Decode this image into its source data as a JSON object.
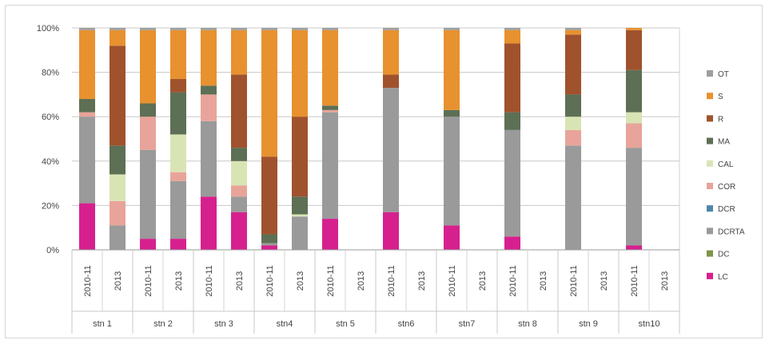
{
  "chart_data": {
    "type": "bar",
    "stacked": true,
    "percent": true,
    "groups": [
      "stn 1",
      "stn 2",
      "stn 3",
      "stn4",
      "stn 5",
      "stn6",
      "stn7",
      "stn 8",
      "stn 9",
      "stn10"
    ],
    "periods": [
      "2010-11",
      "2013"
    ],
    "y_ticks": [
      "0%",
      "20%",
      "40%",
      "60%",
      "80%",
      "100%"
    ],
    "ylim": [
      0,
      100
    ],
    "grid": true,
    "legend_position": "right",
    "series": [
      {
        "name": "LC",
        "color": "#d6208e"
      },
      {
        "name": "DC",
        "color": "#7f9447"
      },
      {
        "name": "DCRTA",
        "color": "#9a9a9a"
      },
      {
        "name": "DCR",
        "color": "#4f86a8"
      },
      {
        "name": "COR",
        "color": "#e8a49a"
      },
      {
        "name": "CAL",
        "color": "#d9e4b4"
      },
      {
        "name": "MA",
        "color": "#5d6f54"
      },
      {
        "name": "R",
        "color": "#a0522d"
      },
      {
        "name": "S",
        "color": "#e8912f"
      },
      {
        "name": "OT",
        "color": "#9e9e9e"
      }
    ],
    "bars": [
      {
        "station": "stn 1",
        "period": "2010-11",
        "values": [
          21,
          0,
          39,
          0,
          2,
          0,
          6,
          0,
          31,
          1
        ]
      },
      {
        "station": "stn 1",
        "period": "2013",
        "values": [
          0,
          0,
          11,
          0,
          11,
          12,
          13,
          45,
          7,
          1
        ]
      },
      {
        "station": "stn 2",
        "period": "2010-11",
        "values": [
          5,
          0,
          40,
          0,
          15,
          0,
          6,
          0,
          33,
          1
        ]
      },
      {
        "station": "stn 2",
        "period": "2013",
        "values": [
          5,
          0,
          26,
          0,
          4,
          17,
          19,
          6,
          22,
          1
        ]
      },
      {
        "station": "stn 3",
        "period": "2010-11",
        "values": [
          24,
          0,
          34,
          0,
          12,
          0,
          4,
          0,
          25,
          1
        ]
      },
      {
        "station": "stn 3",
        "period": "2013",
        "values": [
          17,
          0,
          7,
          0,
          5,
          11,
          6,
          33,
          20,
          1
        ]
      },
      {
        "station": "stn4",
        "period": "2010-11",
        "values": [
          2,
          0,
          1,
          0,
          0,
          0,
          4,
          35,
          57,
          1
        ]
      },
      {
        "station": "stn4",
        "period": "2013",
        "values": [
          0,
          0,
          15,
          0,
          0,
          1,
          8,
          36,
          39,
          1
        ]
      },
      {
        "station": "stn 5",
        "period": "2010-11",
        "values": [
          14,
          0,
          48,
          0,
          1,
          0,
          2,
          0,
          34,
          1
        ]
      },
      {
        "station": "stn6",
        "period": "2010-11",
        "values": [
          17,
          0,
          56,
          0,
          0,
          0,
          0,
          6,
          20,
          1
        ]
      },
      {
        "station": "stn7",
        "period": "2010-11",
        "values": [
          11,
          0,
          49,
          0,
          0,
          0,
          3,
          0,
          36,
          1
        ]
      },
      {
        "station": "stn 8",
        "period": "2010-11",
        "values": [
          6,
          0,
          48,
          0,
          0,
          0,
          8,
          31,
          6,
          1
        ]
      },
      {
        "station": "stn 9",
        "period": "2010-11",
        "values": [
          0,
          0,
          47,
          0,
          7,
          6,
          10,
          27,
          2,
          1
        ]
      },
      {
        "station": "stn10",
        "period": "2010-11",
        "values": [
          2,
          0,
          44,
          0,
          11,
          5,
          19,
          18,
          1,
          0
        ]
      }
    ]
  }
}
